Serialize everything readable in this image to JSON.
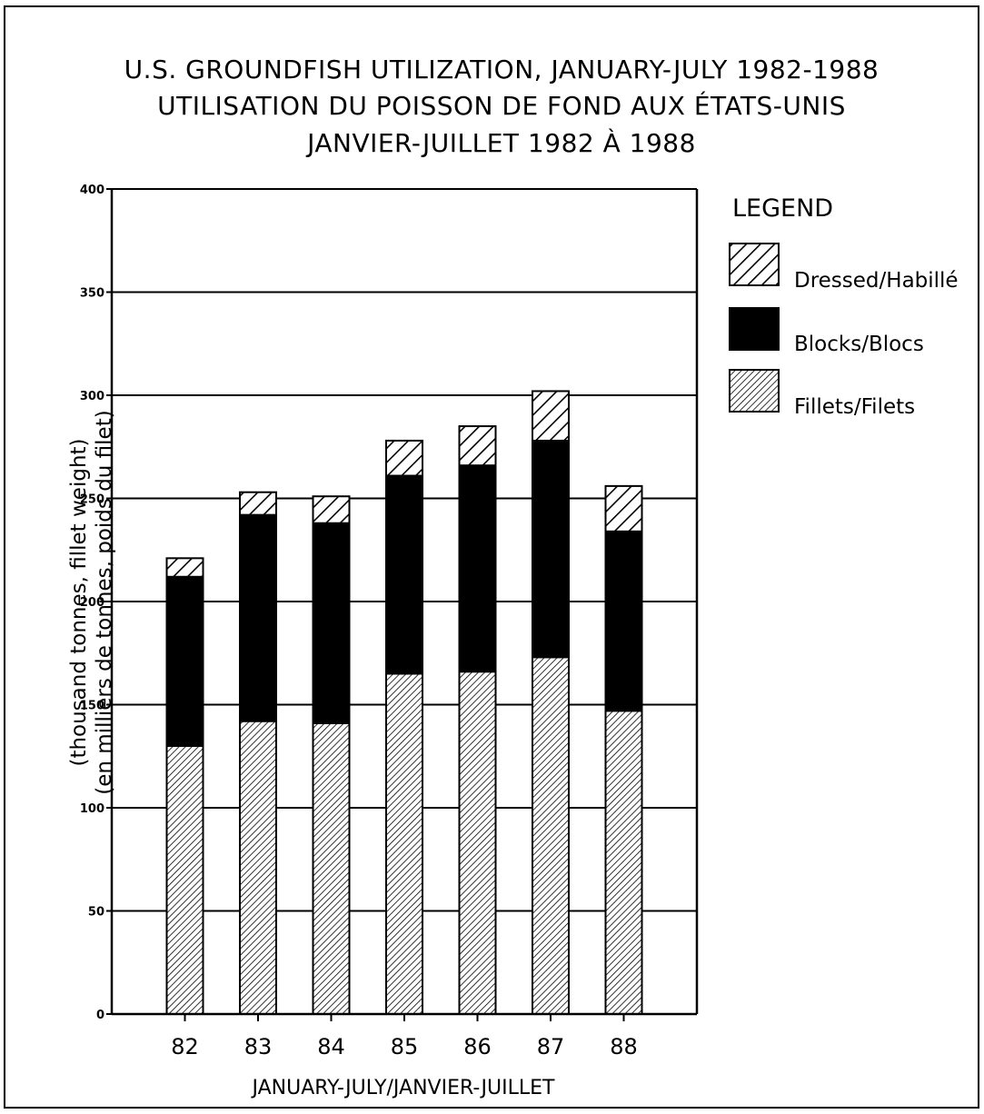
{
  "chart_data": {
    "type": "bar",
    "stacked": true,
    "title": [
      "U.S. GROUNDFISH UTILIZATION, JANUARY-JULY 1982-1988",
      "UTILISATION DU POISSON DE FOND AUX ÉTATS-UNIS",
      "JANVIER-JUILLET 1982 À 1988"
    ],
    "ylabel": [
      "(thousand tonnes, fillet weight)",
      "(en milliers de tonnes, poids du filet)"
    ],
    "xlabel": "JANUARY-JULY/JANVIER-JUILLET",
    "ylim": [
      0,
      400
    ],
    "yticks": [
      "0",
      "50",
      "100",
      "150",
      "200",
      "250",
      "300",
      "350",
      "400"
    ],
    "grid": true,
    "legend_title": "LEGEND",
    "legend_position": "right",
    "categories": [
      "82",
      "83",
      "84",
      "85",
      "86",
      "87",
      "88"
    ],
    "series": [
      {
        "name": "Fillets/Filets",
        "values": [
          130,
          142,
          141,
          165,
          166,
          173,
          147
        ],
        "pattern": "fine-hatch"
      },
      {
        "name": "Blocks/Blocs",
        "values": [
          82,
          100,
          97,
          96,
          100,
          105,
          87
        ],
        "pattern": "solid",
        "color": "#000000"
      },
      {
        "name": "Dressed/Habillé",
        "values": [
          9,
          11,
          13,
          17,
          19,
          24,
          22
        ],
        "pattern": "coarse-hatch"
      }
    ]
  }
}
